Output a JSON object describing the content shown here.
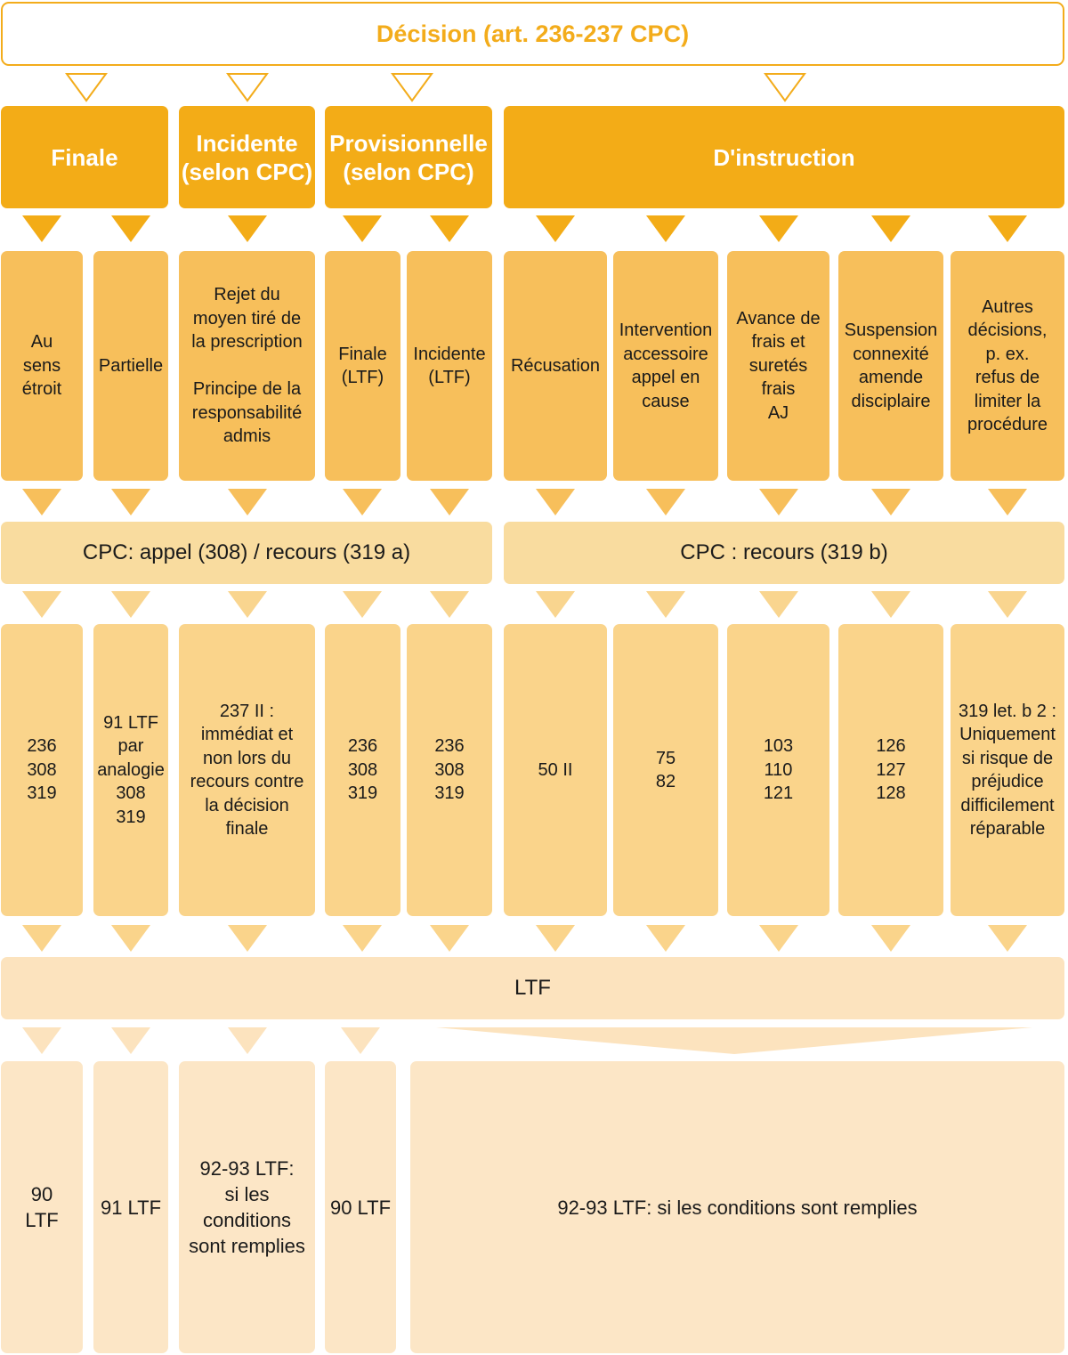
{
  "diagram": {
    "title": "Décision (art. 236-237 CPC)",
    "categories": [
      {
        "id": "finale",
        "label": "Finale"
      },
      {
        "id": "incidente",
        "label": "Incidente\n(selon CPC)"
      },
      {
        "id": "provisionnelle",
        "label": "Provisionnelle\n(selon CPC)"
      },
      {
        "id": "instruction",
        "label": "D'instruction"
      }
    ],
    "types": [
      {
        "label": "Au\nsens\nétroit"
      },
      {
        "label": "Partielle"
      },
      {
        "label": "Rejet du\nmoyen tiré de\nla prescription\n\nPrincipe de la\nresponsabilité\nadmis"
      },
      {
        "label": "Finale\n(LTF)"
      },
      {
        "label": "Incidente\n(LTF)"
      },
      {
        "label": "Récusation"
      },
      {
        "label": "Intervention\naccessoire\nappel en\ncause"
      },
      {
        "label": "Avance de\nfrais et\nsuretés\nfrais\nAJ"
      },
      {
        "label": "Suspension\nconnexité\namende\ndisciplaire"
      },
      {
        "label": "Autres\ndécisions,\np. ex.\nrefus de\nlimiter la\nprocédure"
      }
    ],
    "remedies": [
      {
        "label": "CPC: appel (308) / recours (319 a)"
      },
      {
        "label": "CPC : recours (319 b)"
      }
    ],
    "articles": [
      {
        "label": "236\n308\n319"
      },
      {
        "label": "91 LTF\npar\nanalogie\n308\n319"
      },
      {
        "label": "237 II :\nimmédiat et\nnon lors du\nrecours contre\nla décision\nfinale"
      },
      {
        "label": "236\n308\n319"
      },
      {
        "label": "236\n308\n319"
      },
      {
        "label": "50 II"
      },
      {
        "label": "75\n82"
      },
      {
        "label": "103\n110\n121"
      },
      {
        "label": "126\n127\n128"
      },
      {
        "label": "319 let. b 2 :\nUniquement\nsi risque de\npréjudice\ndifficilement\nréparable"
      }
    ],
    "ltf": {
      "label": "LTF"
    },
    "outcomes": [
      {
        "label": "90\nLTF"
      },
      {
        "label": "91 LTF"
      },
      {
        "label": "92-93 LTF:\nsi les\nconditions\nsont remplies"
      },
      {
        "label": "90 LTF"
      },
      {
        "label": "92-93 LTF: si les conditions sont remplies"
      }
    ],
    "colors": {
      "accent": "#f3ac17",
      "row_types": "#f7bf5b",
      "row_remedies": "#f9dc9f",
      "row_articles": "#fad48b",
      "row_ltf": "#fce3be",
      "row_outcomes": "#fce6c6"
    }
  }
}
